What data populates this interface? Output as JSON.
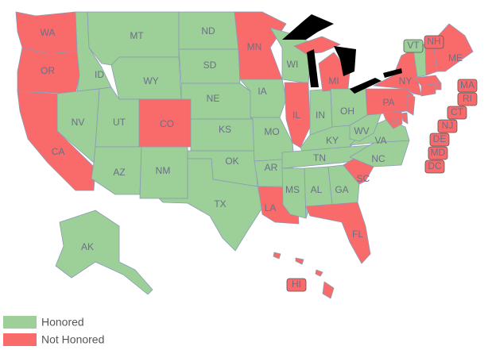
{
  "legend": [
    {
      "label": "Honored",
      "color": "#9dcf98"
    },
    {
      "label": "Not Honored",
      "color": "#f96b6b"
    }
  ],
  "states": [
    {
      "label": "WA",
      "honored": false
    },
    {
      "label": "OR",
      "honored": false
    },
    {
      "label": "CA",
      "honored": false
    },
    {
      "label": "ID",
      "honored": true
    },
    {
      "label": "NV",
      "honored": true
    },
    {
      "label": "MT",
      "honored": true
    },
    {
      "label": "WY",
      "honored": true
    },
    {
      "label": "UT",
      "honored": true
    },
    {
      "label": "CO",
      "honored": false
    },
    {
      "label": "AZ",
      "honored": true
    },
    {
      "label": "NM",
      "honored": true
    },
    {
      "label": "ND",
      "honored": true
    },
    {
      "label": "SD",
      "honored": true
    },
    {
      "label": "NE",
      "honored": true
    },
    {
      "label": "KS",
      "honored": true
    },
    {
      "label": "OK",
      "honored": true
    },
    {
      "label": "TX",
      "honored": true
    },
    {
      "label": "MN",
      "honored": false
    },
    {
      "label": "IA",
      "honored": true
    },
    {
      "label": "MO",
      "honored": true
    },
    {
      "label": "AR",
      "honored": true
    },
    {
      "label": "LA",
      "honored": false
    },
    {
      "label": "WI",
      "honored": true
    },
    {
      "label": "IL",
      "honored": false
    },
    {
      "label": "IN",
      "honored": true
    },
    {
      "label": "MI",
      "honored": false
    },
    {
      "label": "OH",
      "honored": true
    },
    {
      "label": "KY",
      "honored": true
    },
    {
      "label": "TN",
      "honored": true
    },
    {
      "label": "MS",
      "honored": true
    },
    {
      "label": "AL",
      "honored": true
    },
    {
      "label": "GA",
      "honored": true
    },
    {
      "label": "FL",
      "honored": false
    },
    {
      "label": "SC",
      "honored": false
    },
    {
      "label": "NC",
      "honored": true
    },
    {
      "label": "VA",
      "honored": true
    },
    {
      "label": "WV",
      "honored": true
    },
    {
      "label": "PA",
      "honored": false
    },
    {
      "label": "NY",
      "honored": false
    },
    {
      "label": "VT",
      "honored": true
    },
    {
      "label": "NH",
      "honored": false
    },
    {
      "label": "ME",
      "honored": false
    },
    {
      "label": "MA",
      "honored": false
    },
    {
      "label": "RI",
      "honored": false
    },
    {
      "label": "CT",
      "honored": false
    },
    {
      "label": "NJ",
      "honored": false
    },
    {
      "label": "DE",
      "honored": false
    },
    {
      "label": "MD",
      "honored": false
    },
    {
      "label": "DC",
      "honored": false
    },
    {
      "label": "AK",
      "honored": true
    },
    {
      "label": "HI",
      "honored": false
    }
  ]
}
